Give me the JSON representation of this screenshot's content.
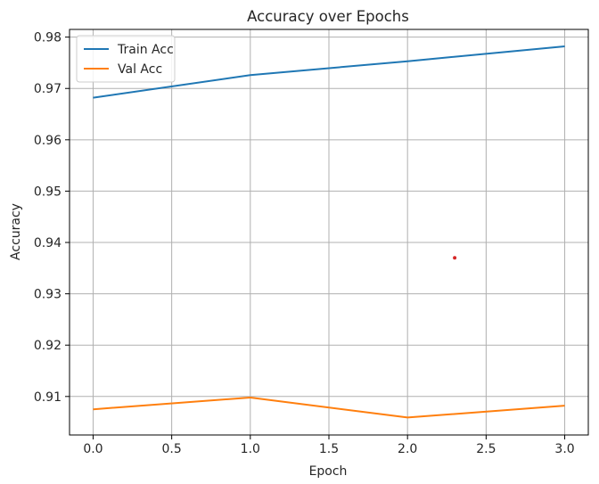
{
  "chart_data": {
    "type": "line",
    "title": "Accuracy over Epochs",
    "xlabel": "Epoch",
    "ylabel": "Accuracy",
    "xlim": [
      -0.15,
      3.15
    ],
    "ylim": [
      0.9025,
      0.9815
    ],
    "x_ticks": [
      0.0,
      0.5,
      1.0,
      1.5,
      2.0,
      2.5,
      3.0
    ],
    "x_tick_labels": [
      "0.0",
      "0.5",
      "1.0",
      "1.5",
      "2.0",
      "2.5",
      "3.0"
    ],
    "y_ticks": [
      0.91,
      0.92,
      0.93,
      0.94,
      0.95,
      0.96,
      0.97,
      0.98
    ],
    "y_tick_labels": [
      "0.91",
      "0.92",
      "0.93",
      "0.94",
      "0.95",
      "0.96",
      "0.97",
      "0.98"
    ],
    "grid": true,
    "legend_position": "upper-left",
    "x": [
      0,
      1,
      2,
      3
    ],
    "series": [
      {
        "name": "Train Acc",
        "color": "#1f77b4",
        "values": [
          0.9682,
          0.9726,
          0.9753,
          0.9782
        ]
      },
      {
        "name": "Val Acc",
        "color": "#ff7f0e",
        "values": [
          0.9075,
          0.9098,
          0.9059,
          0.9082
        ]
      }
    ],
    "annotations": [
      {
        "type": "point",
        "x": 2.3,
        "y": 0.937,
        "color": "#d62728"
      }
    ]
  }
}
